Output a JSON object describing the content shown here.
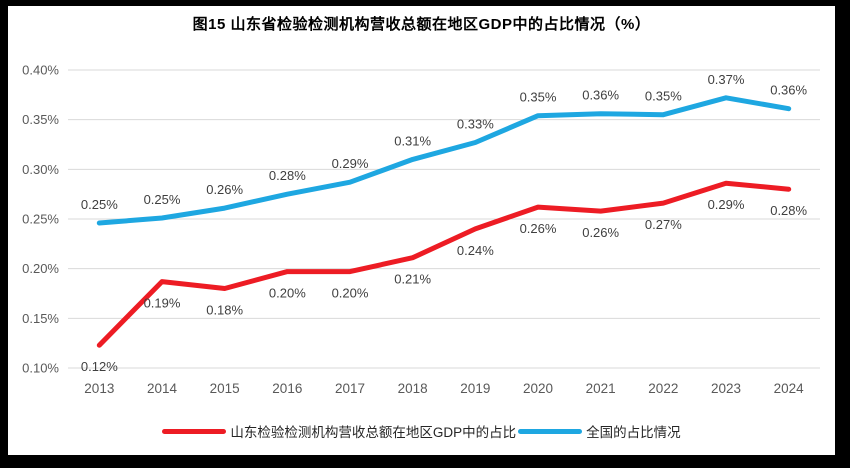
{
  "title": "图15  山东省检验检测机构营收总额在地区GDP中的占比情况（%）",
  "chart_data": {
    "type": "line",
    "title": "图15  山东省检验检测机构营收总额在地区GDP中的占比情况（%）",
    "categories": [
      "2013",
      "2014",
      "2015",
      "2016",
      "2017",
      "2018",
      "2019",
      "2020",
      "2021",
      "2022",
      "2023",
      "2024"
    ],
    "series": [
      {
        "name": "山东检验检测机构营收总额在地区GDP中的占比",
        "color": "#ED1C24",
        "values": [
          0.12,
          0.19,
          0.18,
          0.2,
          0.2,
          0.21,
          0.24,
          0.26,
          0.26,
          0.27,
          0.29,
          0.28
        ],
        "plot_values": [
          0.123,
          0.187,
          0.18,
          0.197,
          0.197,
          0.211,
          0.24,
          0.262,
          0.258,
          0.266,
          0.286,
          0.28
        ],
        "labels": [
          "0.12%",
          "0.19%",
          "0.18%",
          "0.20%",
          "0.20%",
          "0.21%",
          "0.24%",
          "0.26%",
          "0.26%",
          "0.27%",
          "0.29%",
          "0.28%"
        ],
        "label_position": "below"
      },
      {
        "name": "全国的占比情况",
        "color": "#1EA7E1",
        "values": [
          0.25,
          0.25,
          0.26,
          0.28,
          0.29,
          0.31,
          0.33,
          0.35,
          0.36,
          0.35,
          0.37,
          0.36
        ],
        "plot_values": [
          0.246,
          0.251,
          0.261,
          0.275,
          0.287,
          0.31,
          0.327,
          0.354,
          0.356,
          0.355,
          0.372,
          0.361
        ],
        "labels": [
          "0.25%",
          "0.25%",
          "0.26%",
          "0.28%",
          "0.29%",
          "0.31%",
          "0.33%",
          "0.35%",
          "0.36%",
          "0.35%",
          "0.37%",
          "0.36%"
        ],
        "label_position": "above"
      }
    ],
    "ylim": [
      0.1,
      0.4
    ],
    "yticks": [
      "0.10%",
      "0.15%",
      "0.20%",
      "0.25%",
      "0.30%",
      "0.35%",
      "0.40%"
    ],
    "grid": true,
    "legend_position": "bottom",
    "xlabel": "",
    "ylabel": "",
    "axis_color": "#595959",
    "gridline_color": "#D9D9D9",
    "label_color": "#3F3F3F"
  }
}
